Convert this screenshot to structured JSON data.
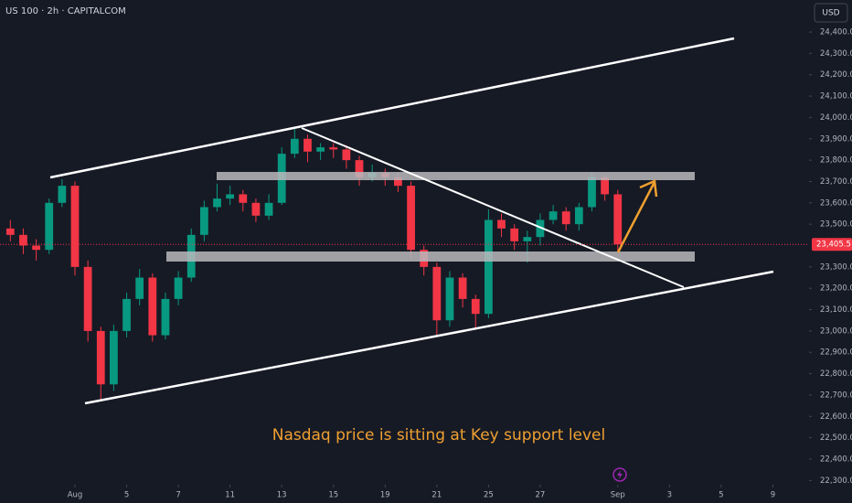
{
  "chart_data": {
    "type": "candlestick",
    "title": "US 100 · 2h · CAPITALCOM",
    "currency": "USD",
    "annotation": "Nasdaq price is sitting at Key support level",
    "up_color": "#089981",
    "down_color": "#f23645",
    "last_price": {
      "value": 23405.5,
      "label": "23,405.5"
    },
    "xlim": [
      -2.9,
      28.4
    ],
    "xticks": [
      {
        "value": 0,
        "label": "Aug"
      },
      {
        "value": 2,
        "label": "5"
      },
      {
        "value": 4,
        "label": "7"
      },
      {
        "value": 6,
        "label": "11"
      },
      {
        "value": 8,
        "label": "13"
      },
      {
        "value": 10,
        "label": "15"
      },
      {
        "value": 12,
        "label": "19"
      },
      {
        "value": 14,
        "label": "21"
      },
      {
        "value": 16,
        "label": "25"
      },
      {
        "value": 18,
        "label": "27"
      },
      {
        "value": 21,
        "label": "Sep"
      },
      {
        "value": 23,
        "label": "3"
      },
      {
        "value": 25,
        "label": "5"
      },
      {
        "value": 27,
        "label": "9"
      }
    ],
    "ylim": [
      22280,
      24550
    ],
    "yticks": [
      {
        "value": 22300,
        "label": "22,300.0"
      },
      {
        "value": 22400,
        "label": "22,400.0"
      },
      {
        "value": 22500,
        "label": "22,500.0"
      },
      {
        "value": 22600,
        "label": "22,600.0"
      },
      {
        "value": 22700,
        "label": "22,700.0"
      },
      {
        "value": 22800,
        "label": "22,800.0"
      },
      {
        "value": 22900,
        "label": "22,900.0"
      },
      {
        "value": 23000,
        "label": "23,000.0"
      },
      {
        "value": 23100,
        "label": "23,100.0"
      },
      {
        "value": 23200,
        "label": "23,200.0"
      },
      {
        "value": 23300,
        "label": "23,300.0"
      },
      {
        "value": 23500,
        "label": "23,500.0"
      },
      {
        "value": 23600,
        "label": "23,600.0"
      },
      {
        "value": 23700,
        "label": "23,700.0"
      },
      {
        "value": 23800,
        "label": "23,800.0"
      },
      {
        "value": 23900,
        "label": "23,900.0"
      },
      {
        "value": 24000,
        "label": "24,000.0"
      },
      {
        "value": 24100,
        "label": "24,100.0"
      },
      {
        "value": 24200,
        "label": "24,200.0"
      },
      {
        "value": 24300,
        "label": "24,300.0"
      },
      {
        "value": 24400,
        "label": "24,400.0"
      }
    ],
    "grid": false,
    "x": [
      -2.5,
      -2,
      -1.5,
      -1,
      -0.5,
      0,
      0.5,
      1,
      1.5,
      2,
      2.5,
      3,
      3.5,
      4,
      4.5,
      5,
      5.5,
      6,
      6.5,
      7,
      7.5,
      8,
      8.5,
      9,
      9.5,
      10,
      10.5,
      11,
      11.5,
      12,
      12.5,
      13,
      13.5,
      14,
      14.5,
      15,
      15.5,
      16,
      16.5,
      17,
      17.5,
      18,
      18.5,
      19,
      19.5,
      20,
      20.5,
      21
    ],
    "open": [
      23480,
      23450,
      23400,
      23380,
      23600,
      23680,
      23300,
      23000,
      22750,
      23000,
      23150,
      23250,
      22980,
      23150,
      23250,
      23450,
      23580,
      23620,
      23640,
      23600,
      23540,
      23600,
      23830,
      23900,
      23840,
      23860,
      23850,
      23800,
      23720,
      23740,
      23720,
      23680,
      23380,
      23300,
      23050,
      23250,
      23150,
      23080,
      23520,
      23480,
      23420,
      23440,
      23520,
      23560,
      23500,
      23580,
      23720,
      23640
    ],
    "high": [
      23520,
      23480,
      23430,
      23620,
      23710,
      23700,
      23330,
      23020,
      23030,
      23180,
      23290,
      23270,
      23180,
      23280,
      23480,
      23610,
      23690,
      23680,
      23660,
      23620,
      23640,
      23860,
      23950,
      23920,
      23880,
      23880,
      23870,
      23820,
      23780,
      23760,
      23740,
      23700,
      23400,
      23320,
      23280,
      23270,
      23170,
      23570,
      23550,
      23500,
      23470,
      23550,
      23590,
      23580,
      23600,
      23740,
      23730,
      23660
    ],
    "low": [
      23420,
      23360,
      23330,
      23360,
      23580,
      23260,
      22950,
      22680,
      22720,
      22970,
      23120,
      22950,
      22960,
      23120,
      23230,
      23420,
      23560,
      23590,
      23560,
      23510,
      23520,
      23590,
      23810,
      23790,
      23800,
      23810,
      23760,
      23680,
      23700,
      23680,
      23650,
      23340,
      23260,
      22980,
      23020,
      23110,
      23010,
      23060,
      23440,
      23380,
      23320,
      23400,
      23500,
      23470,
      23470,
      23560,
      23610,
      23370
    ],
    "close": [
      23450,
      23400,
      23380,
      23600,
      23680,
      23300,
      23000,
      22750,
      23000,
      23150,
      23250,
      22980,
      23150,
      23250,
      23450,
      23580,
      23620,
      23640,
      23600,
      23540,
      23600,
      23830,
      23900,
      23840,
      23860,
      23850,
      23800,
      23720,
      23740,
      23720,
      23680,
      23380,
      23300,
      23050,
      23250,
      23150,
      23080,
      23520,
      23480,
      23420,
      23440,
      23520,
      23560,
      23500,
      23580,
      23720,
      23640,
      23405.5
    ]
  }
}
